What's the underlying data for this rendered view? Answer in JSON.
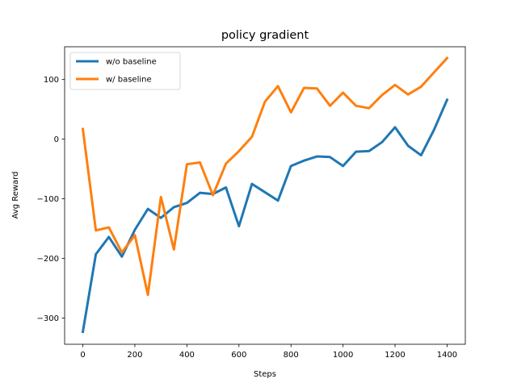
{
  "chart_data": {
    "type": "line",
    "title": "policy gradient",
    "xlabel": "Steps",
    "ylabel": "Avg Reward",
    "xlim": [
      -70,
      1470
    ],
    "ylim": [
      -344,
      155
    ],
    "xticks": [
      0,
      200,
      400,
      600,
      800,
      1000,
      1200,
      1400
    ],
    "yticks": [
      -300,
      -200,
      -100,
      0,
      100
    ],
    "grid": false,
    "legend_position": "top-left",
    "x": [
      0,
      50,
      100,
      150,
      200,
      250,
      300,
      350,
      400,
      450,
      500,
      550,
      600,
      650,
      700,
      750,
      800,
      850,
      900,
      950,
      1000,
      1050,
      1100,
      1150,
      1200,
      1250,
      1300,
      1350,
      1400
    ],
    "series": [
      {
        "name": "w/o baseline",
        "color": "#1f77b4",
        "values": [
          -323,
          -193,
          -164,
          -197,
          -152,
          -117,
          -132,
          -114,
          -107,
          -90,
          -92,
          -81,
          -146,
          -75,
          -89,
          -103,
          -45,
          -36,
          -29,
          -30,
          -45,
          -21,
          -20,
          -5,
          20,
          -11,
          -27,
          16,
          66
        ]
      },
      {
        "name": "w/ baseline",
        "color": "#ff7f0e",
        "values": [
          17,
          -153,
          -148,
          -190,
          -161,
          -261,
          -97,
          -185,
          -42,
          -39,
          -94,
          -41,
          -20,
          4,
          63,
          89,
          45,
          86,
          85,
          56,
          78,
          56,
          52,
          74,
          91,
          75,
          88,
          112,
          136
        ]
      }
    ]
  }
}
